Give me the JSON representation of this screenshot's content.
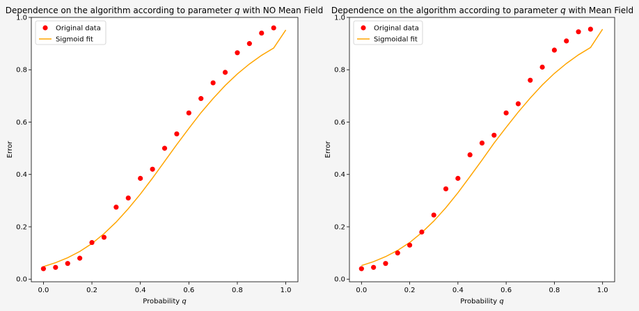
{
  "figure": {
    "background": "#f5f5f5"
  },
  "chart_data": [
    {
      "type": "scatter",
      "title": "Dependence on the algorithm according to parameter q with NO Mean Field",
      "title_parts": {
        "prefix": "Dependence on the algorithm according to parameter ",
        "variable": "q",
        "suffix": " with NO Mean Field"
      },
      "xlabel": "Probability q",
      "xlabel_parts": {
        "prefix": "Probability ",
        "variable": "q"
      },
      "ylabel": "Error",
      "xlim": [
        -0.05,
        1.05
      ],
      "ylim": [
        -0.01,
        1.0
      ],
      "xticks": [
        0.0,
        0.2,
        0.4,
        0.6,
        0.8,
        1.0
      ],
      "xtick_labels": [
        "0.0",
        "0.2",
        "0.4",
        "0.6",
        "0.8",
        "1.0"
      ],
      "yticks": [
        0.0,
        0.2,
        0.4,
        0.6,
        0.8,
        1.0
      ],
      "ytick_labels": [
        "0.0",
        "0.2",
        "0.4",
        "0.6",
        "0.8",
        "1.0"
      ],
      "grid": false,
      "legend": "top-left",
      "series": [
        {
          "name": "Original data",
          "kind": "scatter",
          "color": "#ff0000",
          "x": [
            0.0,
            0.05,
            0.1,
            0.15,
            0.2,
            0.25,
            0.3,
            0.35,
            0.4,
            0.45,
            0.5,
            0.55,
            0.6,
            0.65,
            0.7,
            0.75,
            0.8,
            0.85,
            0.9,
            0.95
          ],
          "y": [
            0.04,
            0.045,
            0.06,
            0.08,
            0.14,
            0.16,
            0.275,
            0.31,
            0.385,
            0.42,
            0.5,
            0.555,
            0.635,
            0.69,
            0.75,
            0.79,
            0.865,
            0.9,
            0.94,
            0.96
          ]
        },
        {
          "name": "Sigmoid fit",
          "kind": "line",
          "color": "#ffa500",
          "x": [
            0.0,
            0.05,
            0.1,
            0.15,
            0.2,
            0.25,
            0.3,
            0.35,
            0.4,
            0.45,
            0.5,
            0.55,
            0.6,
            0.65,
            0.7,
            0.75,
            0.8,
            0.85,
            0.9,
            0.95,
            1.0
          ],
          "y": [
            0.048,
            0.063,
            0.082,
            0.106,
            0.136,
            0.174,
            0.218,
            0.269,
            0.325,
            0.386,
            0.45,
            0.514,
            0.576,
            0.636,
            0.69,
            0.74,
            0.784,
            0.822,
            0.855,
            0.883,
            0.952
          ]
        }
      ]
    },
    {
      "type": "scatter",
      "title": "Dependence on the algorithm according to parameter q with Mean Field",
      "title_parts": {
        "prefix": "Dependence on the algorithm according to parameter ",
        "variable": "q",
        "suffix": " with Mean Field"
      },
      "xlabel": "Probability q",
      "xlabel_parts": {
        "prefix": "Probability ",
        "variable": "q"
      },
      "ylabel": "Error",
      "xlim": [
        -0.05,
        1.05
      ],
      "ylim": [
        -0.01,
        1.0
      ],
      "xticks": [
        0.0,
        0.2,
        0.4,
        0.6,
        0.8,
        1.0
      ],
      "xtick_labels": [
        "0.0",
        "0.2",
        "0.4",
        "0.6",
        "0.8",
        "1.0"
      ],
      "yticks": [
        0.0,
        0.2,
        0.4,
        0.6,
        0.8,
        1.0
      ],
      "ytick_labels": [
        "0.0",
        "0.2",
        "0.4",
        "0.6",
        "0.8",
        "1.0"
      ],
      "grid": false,
      "legend": "top-left",
      "series": [
        {
          "name": "Original data",
          "kind": "scatter",
          "color": "#ff0000",
          "x": [
            0.0,
            0.05,
            0.1,
            0.15,
            0.2,
            0.25,
            0.3,
            0.35,
            0.4,
            0.45,
            0.5,
            0.55,
            0.6,
            0.65,
            0.7,
            0.75,
            0.8,
            0.85,
            0.9,
            0.95
          ],
          "y": [
            0.04,
            0.045,
            0.06,
            0.1,
            0.13,
            0.18,
            0.245,
            0.345,
            0.385,
            0.475,
            0.52,
            0.55,
            0.635,
            0.67,
            0.76,
            0.81,
            0.875,
            0.91,
            0.945,
            0.955
          ]
        },
        {
          "name": "Sigmoidal fit",
          "kind": "line",
          "color": "#ffa500",
          "x": [
            0.0,
            0.05,
            0.1,
            0.15,
            0.2,
            0.25,
            0.3,
            0.35,
            0.4,
            0.45,
            0.5,
            0.55,
            0.6,
            0.65,
            0.7,
            0.75,
            0.8,
            0.85,
            0.9,
            0.95,
            1.0
          ],
          "y": [
            0.052,
            0.067,
            0.086,
            0.11,
            0.14,
            0.178,
            0.222,
            0.273,
            0.33,
            0.392,
            0.455,
            0.52,
            0.58,
            0.638,
            0.692,
            0.742,
            0.786,
            0.824,
            0.857,
            0.885,
            0.955
          ]
        }
      ]
    }
  ]
}
